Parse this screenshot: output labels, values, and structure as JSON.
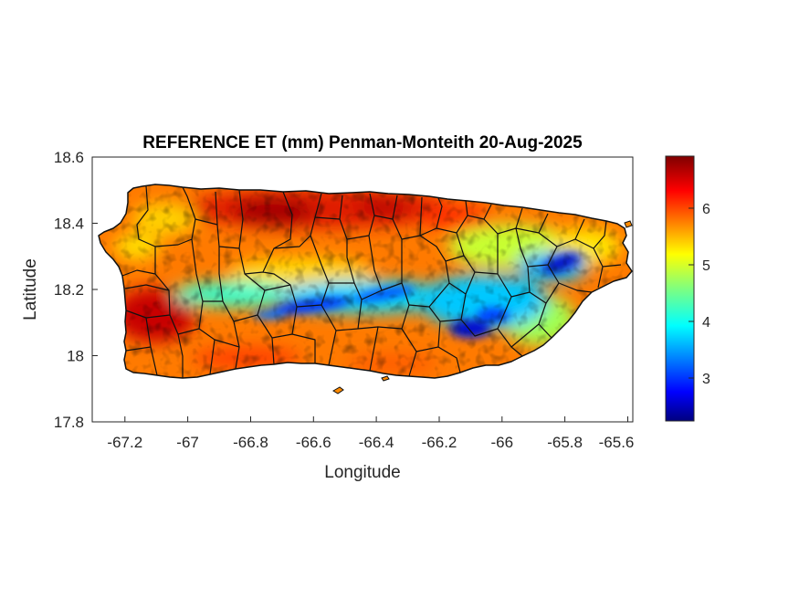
{
  "title": "REFERENCE ET (mm) Penman-Monteith 20-Aug-2025",
  "xlabel": "Longitude",
  "ylabel": "Latitude",
  "x_ticks": [
    "-67.2",
    "-67",
    "-66.8",
    "-66.6",
    "-66.4",
    "-66.2",
    "-66",
    "-65.8",
    "-65.6"
  ],
  "y_ticks": [
    "18.6",
    "18.4",
    "18.2",
    "18",
    "17.8"
  ],
  "colorbar_ticks": [
    "6",
    "5",
    "4",
    "3"
  ],
  "colors": {
    "jet_high": "#7f0000",
    "jet_mid": "#ffff00",
    "jet_low": "#00007f",
    "boundary": "#111111"
  },
  "chart_data": {
    "type": "heatmap",
    "title": "REFERENCE ET (mm) Penman-Monteith 20-Aug-2025",
    "xlabel": "Longitude",
    "ylabel": "Latitude",
    "xlim": [
      -67.3,
      -65.58
    ],
    "ylim": [
      17.8,
      18.6
    ],
    "x_ticks": [
      -67.2,
      -67.0,
      -66.8,
      -66.6,
      -66.4,
      -66.2,
      -66.0,
      -65.8,
      -65.6
    ],
    "y_ticks": [
      18.6,
      18.4,
      18.2,
      18.0,
      17.8
    ],
    "colormap": "jet",
    "clim": [
      2.25,
      6.95
    ],
    "colorbar_ticks": [
      3,
      4,
      5,
      6
    ],
    "region": "Puerto Rico",
    "pattern": "high ET (6–7 mm) along the north and southwest coasts; low ET (2.5–4 mm) along the central mountain ridge and the northeast (El Yunque)"
  }
}
